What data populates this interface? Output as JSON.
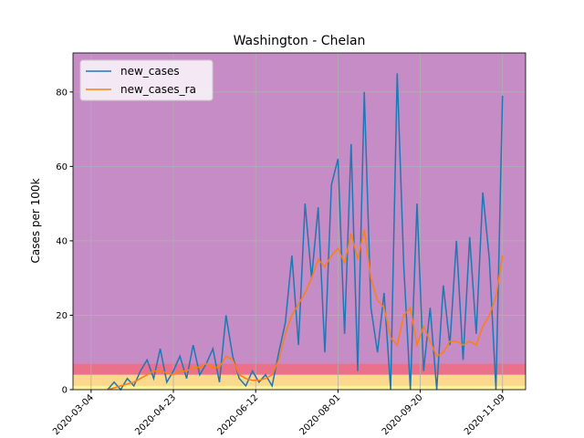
{
  "chart_data": {
    "type": "line",
    "title": "Washington - Chelan",
    "y_label": "Cases per 100k",
    "x": [
      "2020-03-14",
      "2020-03-18",
      "2020-03-22",
      "2020-03-26",
      "2020-03-30",
      "2020-04-03",
      "2020-04-07",
      "2020-04-11",
      "2020-04-15",
      "2020-04-19",
      "2020-04-23",
      "2020-04-27",
      "2020-05-01",
      "2020-05-05",
      "2020-05-09",
      "2020-05-13",
      "2020-05-17",
      "2020-05-21",
      "2020-05-25",
      "2020-05-29",
      "2020-06-02",
      "2020-06-06",
      "2020-06-10",
      "2020-06-14",
      "2020-06-18",
      "2020-06-22",
      "2020-06-26",
      "2020-06-30",
      "2020-07-04",
      "2020-07-08",
      "2020-07-12",
      "2020-07-16",
      "2020-07-20",
      "2020-07-24",
      "2020-07-28",
      "2020-08-01",
      "2020-08-05",
      "2020-08-09",
      "2020-08-13",
      "2020-08-17",
      "2020-08-21",
      "2020-08-25",
      "2020-08-29",
      "2020-09-02",
      "2020-09-06",
      "2020-09-10",
      "2020-09-14",
      "2020-09-18",
      "2020-09-22",
      "2020-09-26",
      "2020-09-30",
      "2020-10-04",
      "2020-10-08",
      "2020-10-12",
      "2020-10-16",
      "2020-10-20",
      "2020-10-24",
      "2020-10-28",
      "2020-11-01",
      "2020-11-05",
      "2020-11-09"
    ],
    "series": [
      {
        "name": "new_cases",
        "color": "#1f77b4",
        "values": [
          0,
          2,
          0,
          3,
          1,
          5,
          8,
          3,
          11,
          2,
          5,
          9,
          3,
          12,
          4,
          7,
          11,
          2,
          20,
          9,
          3,
          1,
          5,
          2,
          4,
          1,
          10,
          18,
          36,
          12,
          50,
          30,
          49,
          10,
          55,
          62,
          15,
          66,
          5,
          80,
          22,
          10,
          26,
          0,
          85,
          33,
          0,
          50,
          5,
          22,
          0,
          28,
          12,
          40,
          8,
          41,
          15,
          53,
          35,
          0,
          79
        ]
      },
      {
        "name": "new_cases_ra",
        "color": "#ff7f0e",
        "values": [
          0,
          0.5,
          1,
          1.5,
          2,
          3,
          4,
          5,
          5,
          4.5,
          4,
          5,
          5,
          6,
          6,
          7,
          6,
          6,
          9,
          8,
          4,
          3,
          2.5,
          2.5,
          3,
          4,
          8,
          15,
          20,
          23,
          26,
          30,
          35,
          33,
          36,
          38,
          34,
          42,
          35,
          43,
          30,
          24,
          22,
          14,
          12,
          20,
          22,
          12,
          17,
          13,
          9,
          10,
          13,
          13,
          12,
          13,
          12,
          17,
          20,
          25,
          36
        ]
      }
    ],
    "bands": [
      {
        "range": [
          0,
          1
        ],
        "color": "#fff48a"
      },
      {
        "range": [
          1,
          4
        ],
        "color": "#fbd580"
      },
      {
        "range": [
          4,
          7
        ],
        "color": "#e8607f"
      },
      {
        "range": [
          7,
          90.5
        ],
        "color": "#bf7fbf"
      }
    ],
    "xlim": [
      "2020-02-22",
      "2020-11-23"
    ],
    "xticks": [
      "2020-03-04",
      "2020-04-23",
      "2020-06-12",
      "2020-08-01",
      "2020-09-20",
      "2020-11-09"
    ],
    "ylim": [
      0,
      90.5
    ],
    "yticks": [
      0,
      20,
      40,
      60,
      80
    ],
    "grid": true,
    "legend": "upper left"
  }
}
